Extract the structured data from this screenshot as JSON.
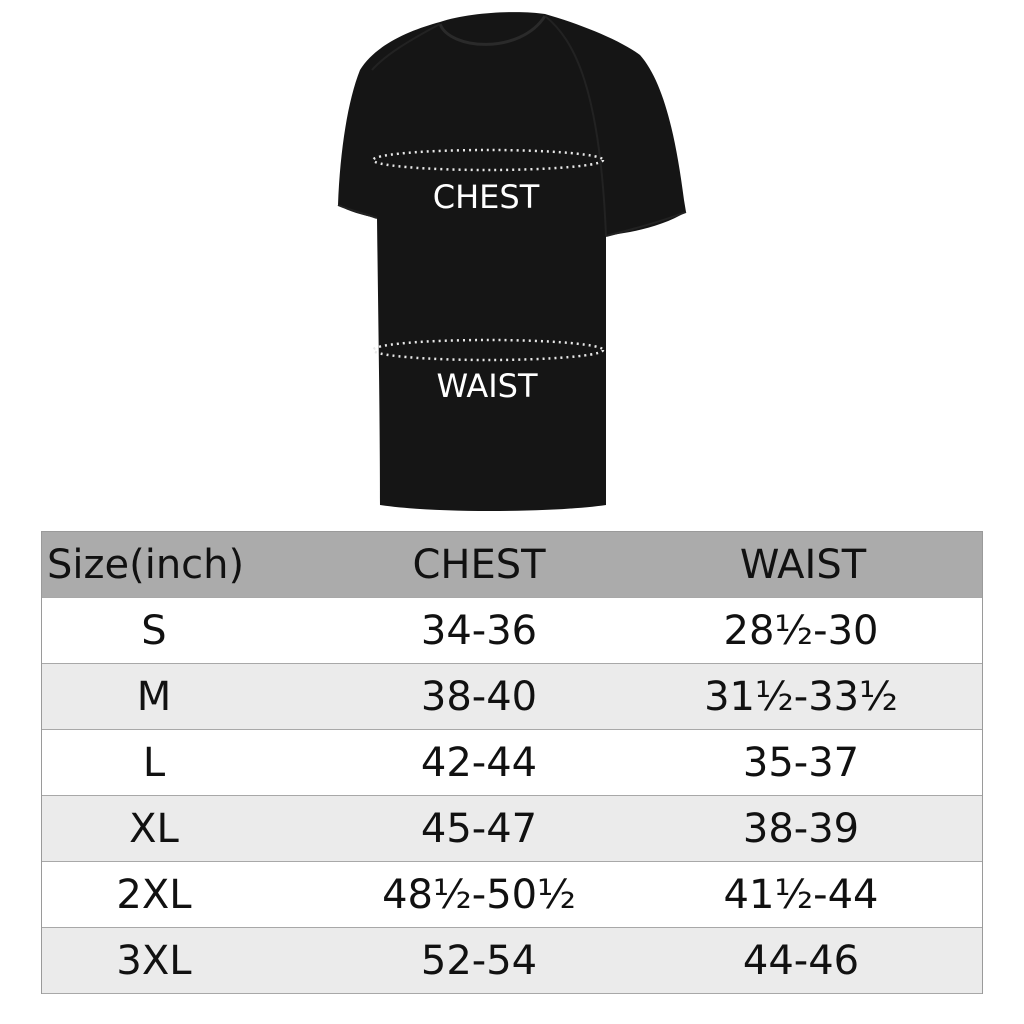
{
  "colors": {
    "shirt": "#141414",
    "header_bg": "#ababab",
    "row_alt_bg": "#ebebeb",
    "row_bg": "#ffffff"
  },
  "shirt": {
    "chest_label": "CHEST",
    "waist_label": "WAIST"
  },
  "table": {
    "headers": [
      "Size(inch)",
      "CHEST",
      "WAIST"
    ],
    "rows": [
      [
        "S",
        "34-36",
        "28½-30"
      ],
      [
        "M",
        "38-40",
        "31½-33½"
      ],
      [
        "L",
        "42-44",
        "35-37"
      ],
      [
        "XL",
        "45-47",
        "38-39"
      ],
      [
        "2XL",
        "48½-50½",
        "41½-44"
      ],
      [
        "3XL",
        "52-54",
        "44-46"
      ]
    ]
  }
}
